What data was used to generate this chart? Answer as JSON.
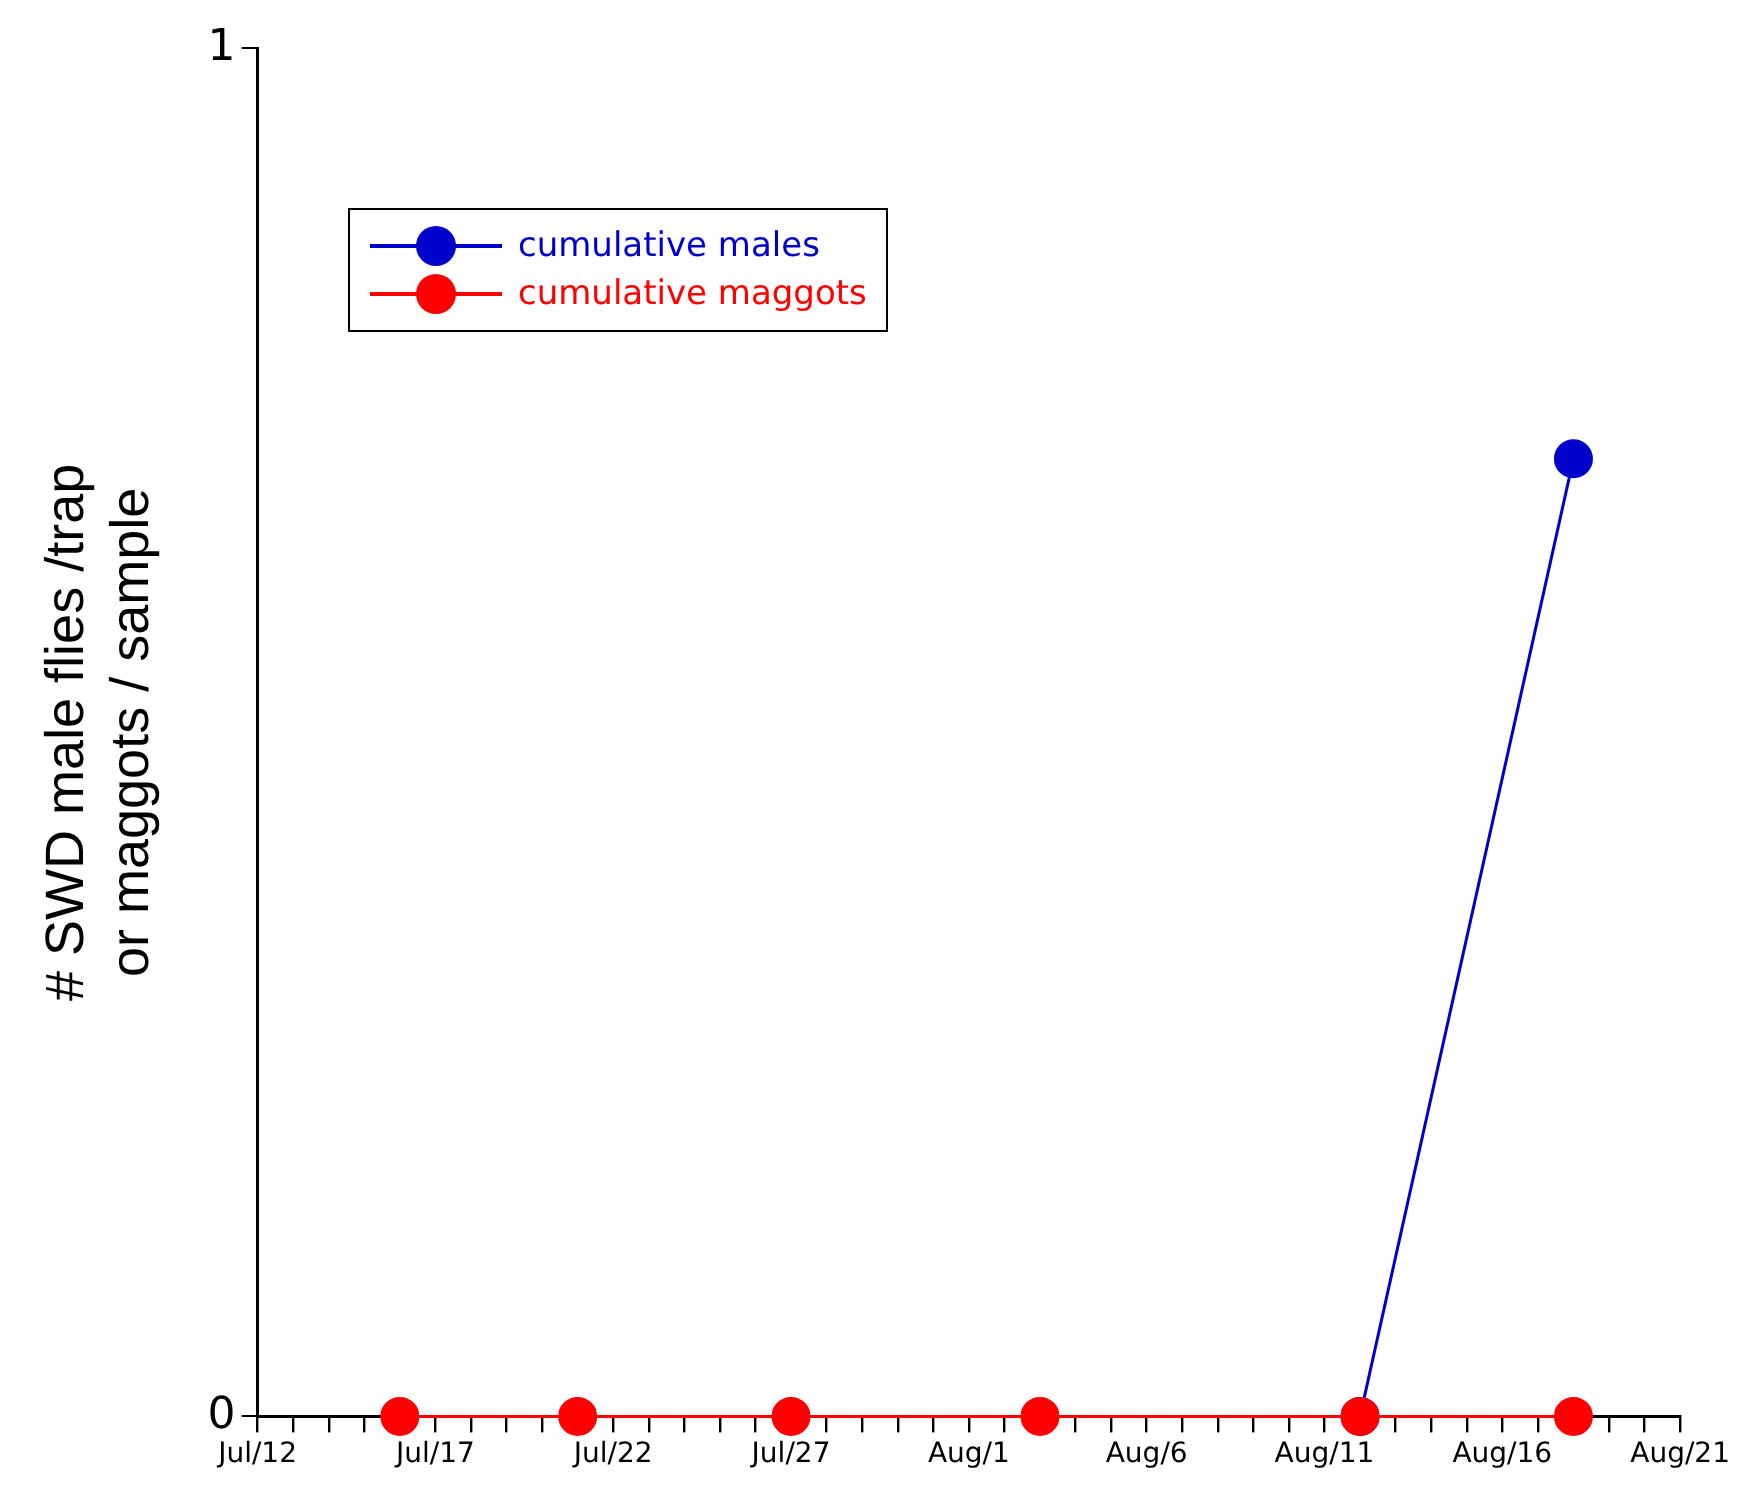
{
  "chart_data": {
    "type": "line",
    "ylabel": "# SWD male flies /trap\nor maggots / sample",
    "xlim": [
      "--07-12",
      "--08-21"
    ],
    "xticks": [
      {
        "value": "--07-12",
        "label": "Jul/12"
      },
      {
        "value": "--07-13",
        "label": null
      },
      {
        "value": "--07-14",
        "label": null
      },
      {
        "value": "--07-15",
        "label": null
      },
      {
        "value": "--07-16",
        "label": null
      },
      {
        "value": "--07-17",
        "label": "Jul/17"
      },
      {
        "value": "--07-18",
        "label": null
      },
      {
        "value": "--07-19",
        "label": null
      },
      {
        "value": "--07-20",
        "label": null
      },
      {
        "value": "--07-21",
        "label": null
      },
      {
        "value": "--07-22",
        "label": "Jul/22"
      },
      {
        "value": "--07-23",
        "label": null
      },
      {
        "value": "--07-24",
        "label": null
      },
      {
        "value": "--07-25",
        "label": null
      },
      {
        "value": "--07-26",
        "label": null
      },
      {
        "value": "--07-27",
        "label": "Jul/27"
      },
      {
        "value": "--07-28",
        "label": null
      },
      {
        "value": "--07-29",
        "label": null
      },
      {
        "value": "--07-30",
        "label": null
      },
      {
        "value": "--07-31",
        "label": null
      },
      {
        "value": "--08-01",
        "label": "Aug/1"
      },
      {
        "value": "--08-02",
        "label": null
      },
      {
        "value": "--08-03",
        "label": null
      },
      {
        "value": "--08-04",
        "label": null
      },
      {
        "value": "--08-05",
        "label": null
      },
      {
        "value": "--08-06",
        "label": "Aug/6"
      },
      {
        "value": "--08-07",
        "label": null
      },
      {
        "value": "--08-08",
        "label": null
      },
      {
        "value": "--08-09",
        "label": null
      },
      {
        "value": "--08-10",
        "label": null
      },
      {
        "value": "--08-11",
        "label": "Aug/11"
      },
      {
        "value": "--08-12",
        "label": null
      },
      {
        "value": "--08-13",
        "label": null
      },
      {
        "value": "--08-14",
        "label": null
      },
      {
        "value": "--08-15",
        "label": null
      },
      {
        "value": "--08-16",
        "label": "Aug/16"
      },
      {
        "value": "--08-17",
        "label": null
      },
      {
        "value": "--08-18",
        "label": null
      },
      {
        "value": "--08-19",
        "label": null
      },
      {
        "value": "--08-20",
        "label": null
      },
      {
        "value": "--08-21",
        "label": "Aug/21"
      }
    ],
    "ylim": [
      0,
      1
    ],
    "yticks": [
      0,
      1
    ],
    "grid": false,
    "legend": "top left",
    "marker": "circle",
    "line_style": "solid",
    "series": [
      {
        "name": "cumulative males",
        "color": "#0000cc",
        "x": [
          "--08-12",
          "--08-18"
        ],
        "values": [
          0,
          0.7
        ]
      },
      {
        "name": "cumulative maggots",
        "color": "#ff0000",
        "x": [
          "--07-16",
          "--07-21",
          "--07-27",
          "--08-03",
          "--08-12",
          "--08-18"
        ],
        "values": [
          0,
          0,
          0,
          0,
          0,
          0
        ]
      }
    ]
  }
}
